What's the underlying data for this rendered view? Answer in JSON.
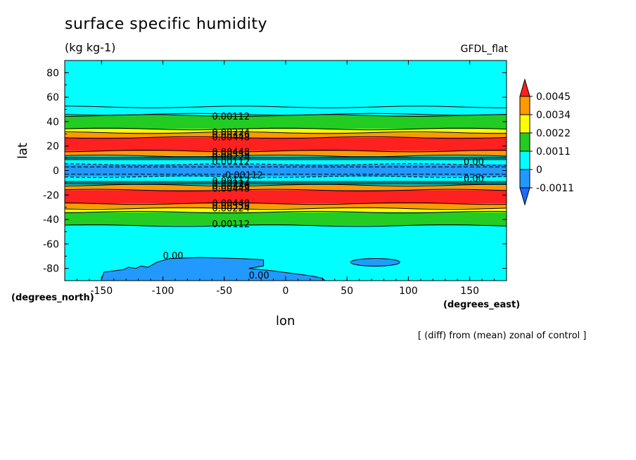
{
  "chart_data": {
    "type": "heatmap",
    "title": "surface specific humidity",
    "units": "(kg kg-1)",
    "model": "GFDL_flat",
    "xlabel": "lon",
    "ylabel": "lat",
    "x_units_label": "(degrees_east)",
    "y_units_label": "(degrees_north)",
    "note": "[ (diff) from (mean) zonal of control ]",
    "xlim": [
      -180,
      180
    ],
    "ylim": [
      -90,
      90
    ],
    "xticks": [
      -150,
      -100,
      -50,
      0,
      50,
      100,
      150
    ],
    "yticks": [
      -80,
      -60,
      -40,
      -20,
      0,
      20,
      40,
      60,
      80
    ],
    "grid": false,
    "colorbar": {
      "labels": [
        "0.0045",
        "0.0034",
        "0.0022",
        "0.0011",
        "0",
        "-0.0011"
      ],
      "colors": [
        "#ff2020",
        "#ff9900",
        "#ffff00",
        "#22cc22",
        "#00ffff",
        "#2299ff",
        "#1e6bff"
      ]
    },
    "bands": [
      {
        "lat_min": 52,
        "lat_max": 90,
        "level": "0 to 0.0011"
      },
      {
        "lat_min": 46,
        "lat_max": 52,
        "level": "0 to 0.0011"
      },
      {
        "lat_min": 34,
        "lat_max": 45,
        "level": "0.0011 to 0.0022"
      },
      {
        "lat_min": 31,
        "lat_max": 34,
        "level": "0.0022 to 0.0034"
      },
      {
        "lat_min": 27,
        "lat_max": 31,
        "level": "0.0034 to 0.0045"
      },
      {
        "lat_min": 16,
        "lat_max": 27,
        "level": "> 0.0045"
      },
      {
        "lat_min": 12,
        "lat_max": 16,
        "level": "0.0034 to 0.0045"
      },
      {
        "lat_min": 5,
        "lat_max": 12,
        "level": "0 to 0.0011"
      },
      {
        "lat_min": -5,
        "lat_max": 5,
        "level": "-0.0011 to 0"
      },
      {
        "lat_min": -12,
        "lat_max": -5,
        "level": "0 to 0.0011"
      },
      {
        "lat_min": -16,
        "lat_max": -12,
        "level": "0.0034 to 0.0045"
      },
      {
        "lat_min": -27,
        "lat_max": -16,
        "level": "> 0.0045"
      },
      {
        "lat_min": -31,
        "lat_max": -27,
        "level": "0.0034 to 0.0045"
      },
      {
        "lat_min": -34,
        "lat_max": -31,
        "level": "0.0022 to 0.0034"
      },
      {
        "lat_min": -45,
        "lat_max": -34,
        "level": "0.0011 to 0.0022"
      },
      {
        "lat_min": -90,
        "lat_max": -45,
        "level": "0 to 0.0011"
      }
    ],
    "contour_labels": [
      {
        "text": "0.00112",
        "lon": -60,
        "lat": 44
      },
      {
        "text": "0.00224",
        "lon": -60,
        "lat": 31
      },
      {
        "text": "0.00336",
        "lon": -60,
        "lat": 29
      },
      {
        "text": "0.00448",
        "lon": -60,
        "lat": 27
      },
      {
        "text": "0.00448",
        "lon": -60,
        "lat": 15
      },
      {
        "text": "0.00336",
        "lon": -60,
        "lat": 13
      },
      {
        "text": "0.00224",
        "lon": -60,
        "lat": 11
      },
      {
        "text": "0.00112",
        "lon": -60,
        "lat": 7
      },
      {
        "text": "-0.00112",
        "lon": -52,
        "lat": -4
      },
      {
        "text": "0.00112",
        "lon": -60,
        "lat": -9
      },
      {
        "text": "0.00224",
        "lon": -60,
        "lat": -11
      },
      {
        "text": "0.00336",
        "lon": -60,
        "lat": -13
      },
      {
        "text": "0.00448",
        "lon": -60,
        "lat": -15
      },
      {
        "text": "0.00448",
        "lon": -60,
        "lat": -27
      },
      {
        "text": "0.00336",
        "lon": -60,
        "lat": -29
      },
      {
        "text": "0.00224",
        "lon": -60,
        "lat": -31
      },
      {
        "text": "0.00112",
        "lon": -60,
        "lat": -44
      },
      {
        "text": "0.00",
        "lon": -100,
        "lat": -70
      },
      {
        "text": "0.00",
        "lon": -30,
        "lat": -86
      },
      {
        "text": "0.00",
        "lon": 145,
        "lat": 7
      },
      {
        "text": "0.00",
        "lon": 145,
        "lat": -7
      }
    ]
  }
}
